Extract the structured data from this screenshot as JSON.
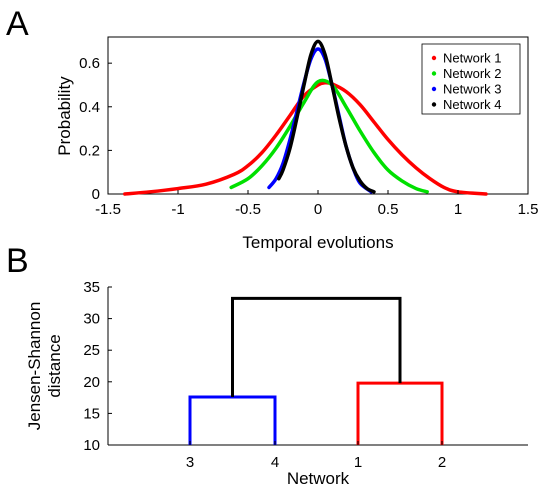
{
  "panel_labels": {
    "a": "A",
    "b": "B"
  },
  "chart_data": [
    {
      "panel": "A",
      "type": "line",
      "xlabel": "Temporal evolutions",
      "ylabel": "Probability",
      "xlim": [
        -1.5,
        1.5
      ],
      "ylim": [
        0,
        0.72
      ],
      "xticks": [
        -1.5,
        -1,
        -0.5,
        0,
        0.5,
        1,
        1.5
      ],
      "xtick_labels": [
        "-1.5",
        "-1",
        "-0.5",
        "0",
        "0.5",
        "1",
        "1.5"
      ],
      "yticks": [
        0,
        0.2,
        0.4,
        0.6
      ],
      "ytick_labels": [
        "0",
        "0.2",
        "0.4",
        "0.6"
      ],
      "legend_position": "top-right",
      "series": [
        {
          "name": "Network 1",
          "color": "#ff0000",
          "x": [
            -1.38,
            -1.2,
            -1.0,
            -0.8,
            -0.6,
            -0.5,
            -0.4,
            -0.3,
            -0.2,
            -0.1,
            0.0,
            0.05,
            0.1,
            0.2,
            0.3,
            0.4,
            0.5,
            0.6,
            0.7,
            0.8,
            0.9,
            1.0,
            1.2
          ],
          "y": [
            0.0,
            0.01,
            0.025,
            0.045,
            0.09,
            0.13,
            0.19,
            0.27,
            0.36,
            0.45,
            0.5,
            0.51,
            0.505,
            0.47,
            0.41,
            0.33,
            0.25,
            0.18,
            0.12,
            0.07,
            0.03,
            0.01,
            0.0
          ]
        },
        {
          "name": "Network 2",
          "color": "#00e000",
          "x": [
            -0.62,
            -0.5,
            -0.4,
            -0.3,
            -0.2,
            -0.1,
            0.0,
            0.1,
            0.2,
            0.3,
            0.4,
            0.5,
            0.6,
            0.7,
            0.78
          ],
          "y": [
            0.03,
            0.07,
            0.13,
            0.21,
            0.31,
            0.42,
            0.515,
            0.5,
            0.4,
            0.29,
            0.19,
            0.11,
            0.06,
            0.025,
            0.01
          ]
        },
        {
          "name": "Network 3",
          "color": "#0000ff",
          "x": [
            -0.35,
            -0.3,
            -0.25,
            -0.2,
            -0.15,
            -0.1,
            -0.05,
            0.0,
            0.05,
            0.1,
            0.15,
            0.2,
            0.25,
            0.3,
            0.38
          ],
          "y": [
            0.03,
            0.07,
            0.14,
            0.25,
            0.38,
            0.51,
            0.62,
            0.665,
            0.62,
            0.5,
            0.36,
            0.22,
            0.12,
            0.05,
            0.01
          ]
        },
        {
          "name": "Network 4",
          "color": "#000000",
          "x": [
            -0.28,
            -0.25,
            -0.2,
            -0.15,
            -0.1,
            -0.05,
            0.0,
            0.05,
            0.1,
            0.15,
            0.2,
            0.25,
            0.3,
            0.35,
            0.4
          ],
          "y": [
            0.07,
            0.11,
            0.21,
            0.35,
            0.5,
            0.64,
            0.7,
            0.64,
            0.5,
            0.35,
            0.22,
            0.12,
            0.06,
            0.025,
            0.01
          ]
        }
      ]
    },
    {
      "panel": "B",
      "type": "dendrogram",
      "xlabel": "Network",
      "ylabel_lines": [
        "Jensen-Shannon",
        "distance"
      ],
      "ylim": [
        10,
        35
      ],
      "yticks": [
        10,
        15,
        20,
        25,
        30,
        35
      ],
      "leaves": [
        "3",
        "4",
        "1",
        "2"
      ],
      "links": [
        {
          "left": 0,
          "right": 1,
          "height": 17.6,
          "color": "#0000ff"
        },
        {
          "left": 2,
          "right": 3,
          "height": 19.8,
          "color": "#ff0000"
        },
        {
          "left_cluster": 0,
          "right_cluster": 1,
          "left_height": 17.6,
          "right_height": 19.8,
          "height": 33.2,
          "color": "#000000"
        }
      ]
    }
  ]
}
